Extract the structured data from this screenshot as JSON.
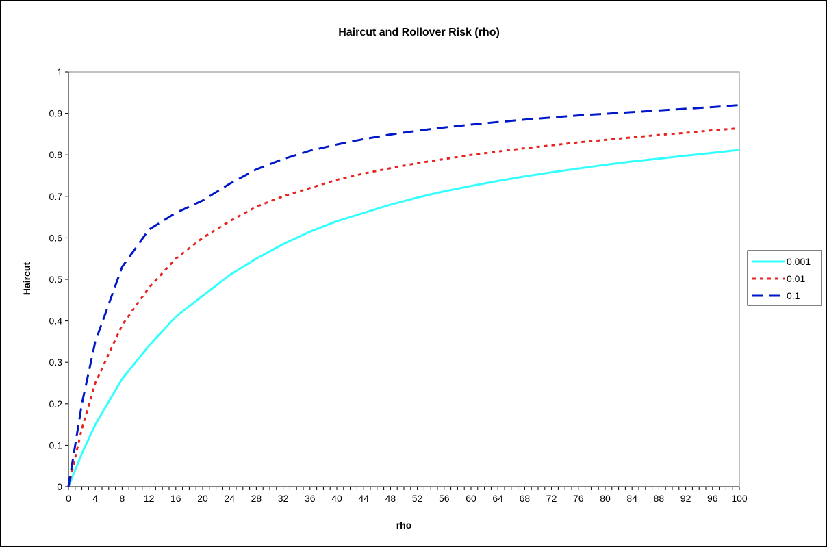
{
  "chart_data": {
    "type": "line",
    "title": "Haircut and Rollover Risk (rho)",
    "xlabel": "rho",
    "ylabel": "Haircut",
    "xlim": [
      0,
      100
    ],
    "ylim": [
      0,
      1
    ],
    "x_ticks": [
      0,
      4,
      8,
      12,
      16,
      20,
      24,
      28,
      32,
      36,
      40,
      44,
      48,
      52,
      56,
      60,
      64,
      68,
      72,
      76,
      80,
      84,
      88,
      92,
      96,
      100
    ],
    "y_ticks": [
      0,
      0.1,
      0.2,
      0.3,
      0.4,
      0.5,
      0.6,
      0.7,
      0.8,
      0.9,
      1
    ],
    "x": [
      0,
      2,
      4,
      8,
      12,
      16,
      20,
      24,
      28,
      32,
      36,
      40,
      44,
      48,
      52,
      56,
      60,
      64,
      68,
      72,
      76,
      80,
      84,
      88,
      92,
      96,
      100
    ],
    "series": [
      {
        "name": "0.001",
        "color": "#33ffff",
        "dash": "solid",
        "values": [
          0,
          0.08,
          0.15,
          0.26,
          0.34,
          0.41,
          0.46,
          0.51,
          0.55,
          0.585,
          0.615,
          0.64,
          0.66,
          0.68,
          0.697,
          0.712,
          0.725,
          0.737,
          0.748,
          0.758,
          0.767,
          0.776,
          0.784,
          0.791,
          0.798,
          0.805,
          0.812
        ]
      },
      {
        "name": "0.01",
        "color": "#e8221f",
        "dash": "dotted",
        "values": [
          0,
          0.14,
          0.25,
          0.39,
          0.48,
          0.55,
          0.6,
          0.64,
          0.675,
          0.7,
          0.72,
          0.74,
          0.755,
          0.768,
          0.78,
          0.79,
          0.8,
          0.808,
          0.816,
          0.823,
          0.83,
          0.836,
          0.842,
          0.848,
          0.853,
          0.859,
          0.864
        ]
      },
      {
        "name": "0.1",
        "color": "#0018c8",
        "dash": "dashed",
        "values": [
          0,
          0.2,
          0.35,
          0.53,
          0.62,
          0.66,
          0.69,
          0.73,
          0.765,
          0.79,
          0.81,
          0.825,
          0.838,
          0.849,
          0.858,
          0.866,
          0.873,
          0.879,
          0.885,
          0.89,
          0.895,
          0.899,
          0.903,
          0.907,
          0.911,
          0.915,
          0.92
        ]
      }
    ],
    "legend": "right",
    "grid": false
  }
}
